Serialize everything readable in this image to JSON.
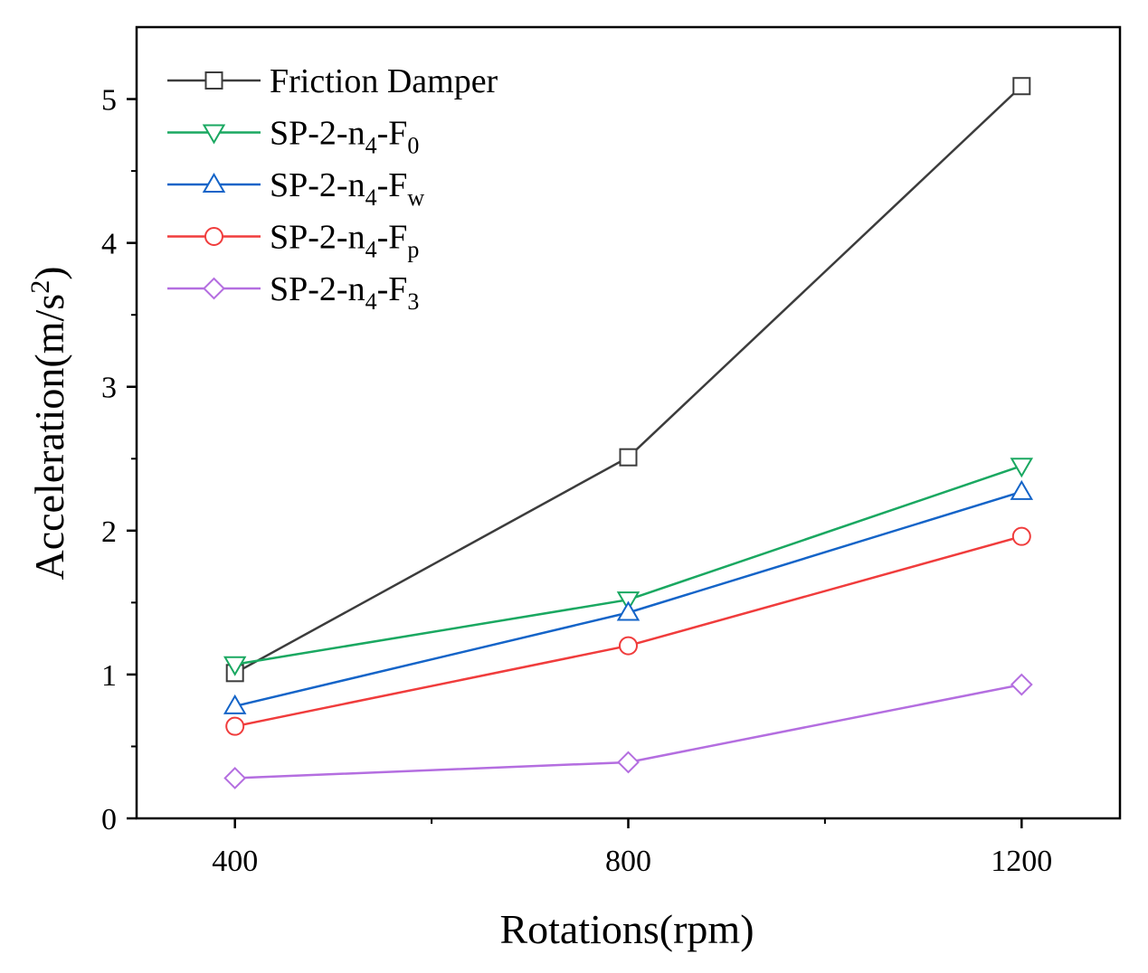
{
  "chart_data": {
    "type": "line",
    "title": "",
    "xlabel": "Rotations(rpm)",
    "ylabel": "Acceleration(m/s²)",
    "ylabel_parts": {
      "main": "Acceleration(m/s",
      "sup": "2",
      "end": ")"
    },
    "x": [
      400,
      800,
      1200
    ],
    "x_ticks": [
      "400",
      "800",
      "1200"
    ],
    "y_ticks": [
      "0",
      "1",
      "2",
      "3",
      "4",
      "5"
    ],
    "xlim": [
      300,
      1300
    ],
    "ylim": [
      0,
      5.5
    ],
    "grid": false,
    "legend_position": "top-left",
    "series": [
      {
        "name": "Friction Damper",
        "legend": {
          "main": "Friction Damper",
          "sub": "",
          "sub2": ""
        },
        "marker": "square",
        "color": "#3c3c3c",
        "values": [
          1.01,
          2.51,
          5.09
        ]
      },
      {
        "name": "SP-2-n4-F0",
        "legend": {
          "main": "SP-2-n",
          "sub": "4",
          "mid": "-F",
          "sub2": "0"
        },
        "marker": "triangle-down",
        "color": "#1aa861",
        "values": [
          1.07,
          1.52,
          2.45
        ]
      },
      {
        "name": "SP-2-n4-Fw",
        "legend": {
          "main": "SP-2-n",
          "sub": "4",
          "mid": "-F",
          "sub2": "w"
        },
        "marker": "triangle-up",
        "color": "#1464c8",
        "values": [
          0.78,
          1.43,
          2.27
        ]
      },
      {
        "name": "SP-2-n4-Fp",
        "legend": {
          "main": "SP-2-n",
          "sub": "4",
          "mid": "-F",
          "sub2": "p"
        },
        "marker": "circle",
        "color": "#f03c3c",
        "values": [
          0.64,
          1.2,
          1.96
        ]
      },
      {
        "name": "SP-2-n4-F3",
        "legend": {
          "main": "SP-2-n",
          "sub": "4",
          "mid": "-F",
          "sub2": "3"
        },
        "marker": "diamond",
        "color": "#b46ee0",
        "values": [
          0.28,
          0.39,
          0.93
        ]
      }
    ]
  }
}
